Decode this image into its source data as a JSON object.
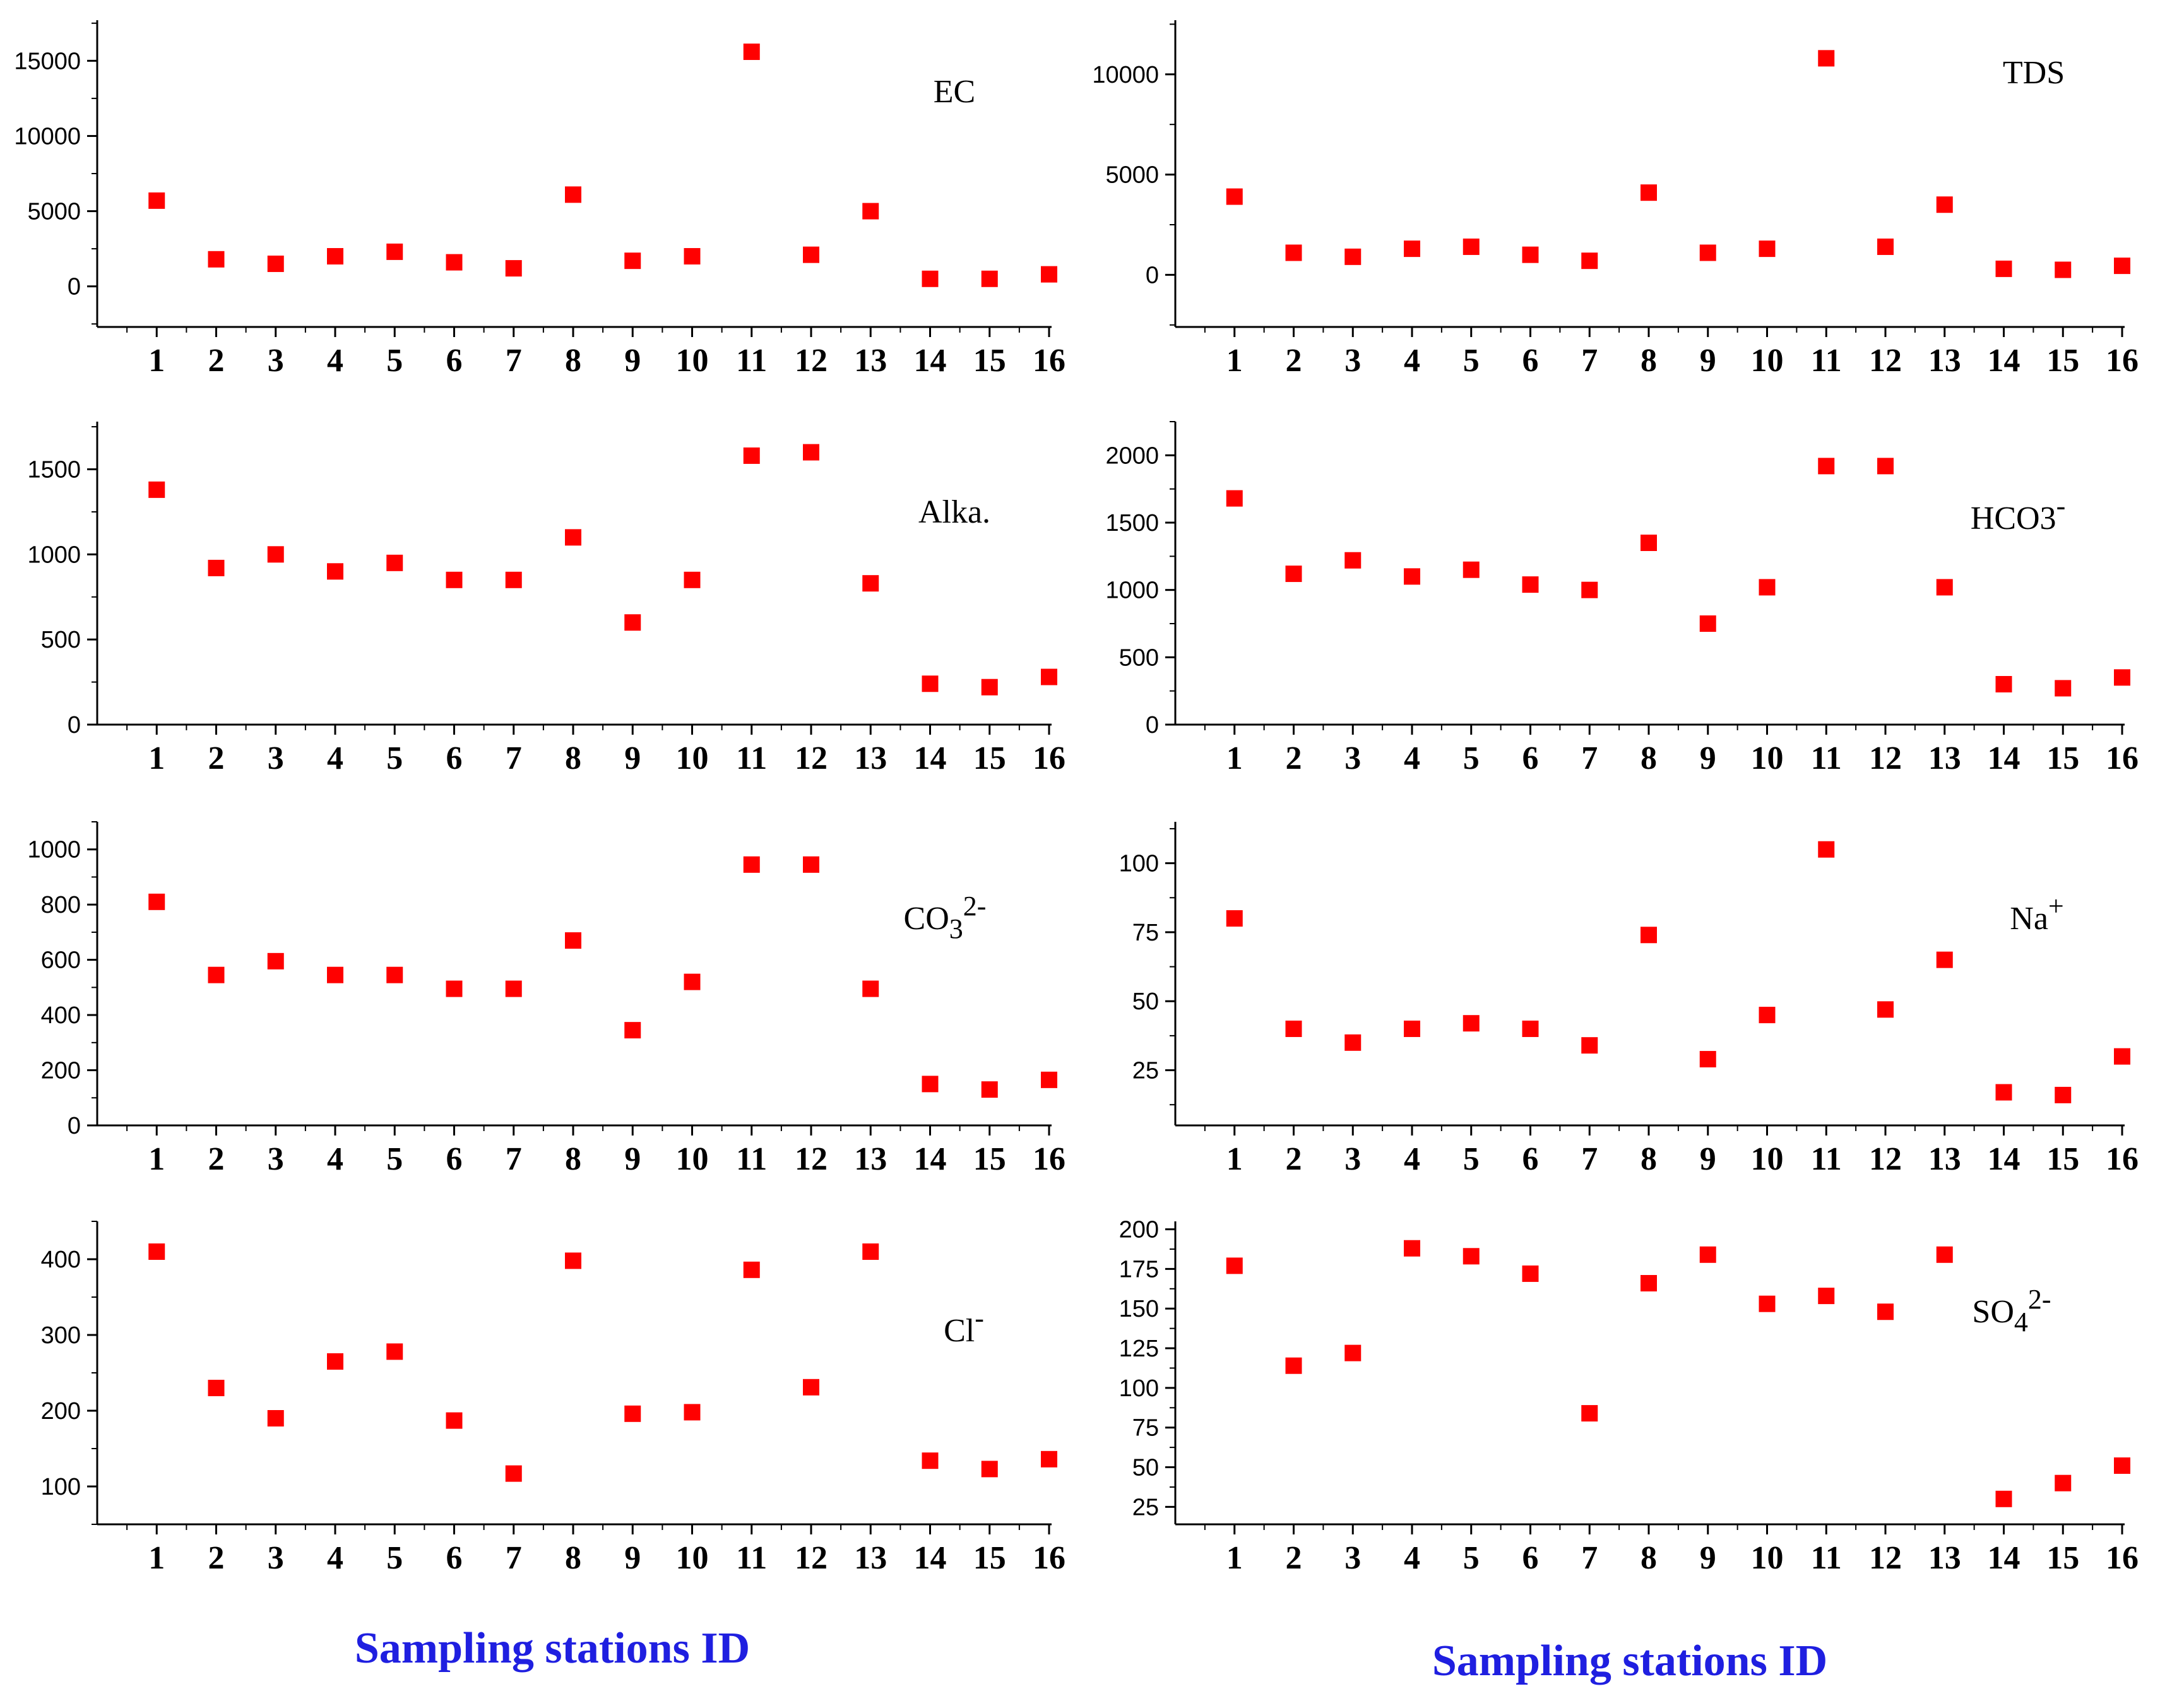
{
  "figure": {
    "x_caption_left": "Sampling stations ID",
    "x_caption_right": "Sampling stations ID",
    "marker_color": "#ff0000",
    "caption_color": "#1f1fe0"
  },
  "chart_data": [
    {
      "id": "ec",
      "type": "scatter",
      "title": {
        "main": "EC",
        "sub": "",
        "sup": ""
      },
      "categories": [
        "1",
        "2",
        "3",
        "4",
        "5",
        "6",
        "7",
        "8",
        "9",
        "10",
        "11",
        "12",
        "13",
        "14",
        "15",
        "16"
      ],
      "values": [
        5700,
        1800,
        1500,
        2000,
        2300,
        1600,
        1200,
        6100,
        1700,
        2000,
        15600,
        2100,
        5000,
        500,
        500,
        800
      ],
      "yticks": [
        "0",
        "5000",
        "10000",
        "15000"
      ],
      "ylim": [
        -2700,
        17700
      ],
      "xlabel": "Sampling stations ID",
      "ylabel": ""
    },
    {
      "id": "tds",
      "type": "scatter",
      "title": {
        "main": "TDS",
        "sub": "",
        "sup": ""
      },
      "categories": [
        "1",
        "2",
        "3",
        "4",
        "5",
        "6",
        "7",
        "8",
        "9",
        "10",
        "11",
        "12",
        "13",
        "14",
        "15",
        "16"
      ],
      "values": [
        3900,
        1100,
        900,
        1300,
        1400,
        1000,
        700,
        4100,
        1100,
        1300,
        10800,
        1400,
        3500,
        300,
        250,
        450
      ],
      "yticks": [
        "0",
        "5000",
        "10000"
      ],
      "ylim": [
        -2600,
        12700
      ],
      "xlabel": "Sampling stations ID",
      "ylabel": ""
    },
    {
      "id": "alka",
      "type": "scatter",
      "title": {
        "main": "Alka.",
        "sub": "",
        "sup": ""
      },
      "categories": [
        "1",
        "2",
        "3",
        "4",
        "5",
        "6",
        "7",
        "8",
        "9",
        "10",
        "11",
        "12",
        "13",
        "14",
        "15",
        "16"
      ],
      "values": [
        1380,
        920,
        1000,
        900,
        950,
        850,
        850,
        1100,
        600,
        850,
        1580,
        1600,
        830,
        240,
        220,
        280
      ],
      "yticks": [
        "0",
        "500",
        "1000",
        "1500"
      ],
      "ylim": [
        0,
        1780
      ],
      "xlabel": "Sampling stations ID",
      "ylabel": ""
    },
    {
      "id": "hco3",
      "type": "scatter",
      "title": {
        "main": "HCO3",
        "sub": "",
        "sup": "-"
      },
      "categories": [
        "1",
        "2",
        "3",
        "4",
        "5",
        "6",
        "7",
        "8",
        "9",
        "10",
        "11",
        "12",
        "13",
        "14",
        "15",
        "16"
      ],
      "values": [
        1680,
        1120,
        1220,
        1100,
        1150,
        1040,
        1000,
        1350,
        750,
        1020,
        1920,
        1920,
        1020,
        300,
        270,
        350
      ],
      "yticks": [
        "0",
        "500",
        "1000",
        "1500",
        "2000"
      ],
      "ylim": [
        0,
        2250
      ],
      "xlabel": "Sampling stations ID",
      "ylabel": ""
    },
    {
      "id": "co3",
      "type": "scatter",
      "title": {
        "main": "CO",
        "sub": "3",
        "sup": "2-"
      },
      "categories": [
        "1",
        "2",
        "3",
        "4",
        "5",
        "6",
        "7",
        "8",
        "9",
        "10",
        "11",
        "12",
        "13",
        "14",
        "15",
        "16"
      ],
      "values": [
        810,
        545,
        595,
        545,
        545,
        495,
        495,
        670,
        345,
        520,
        945,
        945,
        495,
        150,
        130,
        165
      ],
      "yticks": [
        "0",
        "200",
        "400",
        "600",
        "800",
        "1000"
      ],
      "ylim": [
        0,
        1100
      ],
      "xlabel": "Sampling stations ID",
      "ylabel": ""
    },
    {
      "id": "na",
      "type": "scatter",
      "title": {
        "main": "Na",
        "sub": "",
        "sup": "+"
      },
      "categories": [
        "1",
        "2",
        "3",
        "4",
        "5",
        "6",
        "7",
        "8",
        "9",
        "10",
        "11",
        "12",
        "13",
        "14",
        "15",
        "16"
      ],
      "values": [
        80,
        40,
        35,
        40,
        42,
        40,
        34,
        74,
        29,
        45,
        105,
        47,
        65,
        17,
        16,
        30
      ],
      "yticks": [
        "25",
        "50",
        "75",
        "100"
      ],
      "ylim": [
        5,
        115
      ],
      "xlabel": "Sampling stations ID",
      "ylabel": ""
    },
    {
      "id": "cl",
      "type": "scatter",
      "title": {
        "main": "Cl",
        "sub": "",
        "sup": "-"
      },
      "categories": [
        "1",
        "2",
        "3",
        "4",
        "5",
        "6",
        "7",
        "8",
        "9",
        "10",
        "11",
        "12",
        "13",
        "14",
        "15",
        "16"
      ],
      "values": [
        410,
        230,
        190,
        265,
        278,
        187,
        117,
        398,
        196,
        198,
        386,
        231,
        410,
        134,
        123,
        136
      ],
      "yticks": [
        "100",
        "200",
        "300",
        "400"
      ],
      "ylim": [
        50,
        450
      ],
      "xlabel": "Sampling stations ID",
      "ylabel": ""
    },
    {
      "id": "so4",
      "type": "scatter",
      "title": {
        "main": "SO",
        "sub": "4",
        "sup": "2-"
      },
      "categories": [
        "1",
        "2",
        "3",
        "4",
        "5",
        "6",
        "7",
        "8",
        "9",
        "10",
        "11",
        "12",
        "13",
        "14",
        "15",
        "16"
      ],
      "values": [
        177,
        114,
        122,
        188,
        183,
        172,
        84,
        166,
        184,
        153,
        158,
        148,
        184,
        30,
        40,
        51
      ],
      "yticks": [
        "25",
        "50",
        "75",
        "100",
        "125",
        "150",
        "175",
        "200"
      ],
      "ylim": [
        14,
        205
      ],
      "xlabel": "Sampling stations ID",
      "ylabel": ""
    }
  ]
}
